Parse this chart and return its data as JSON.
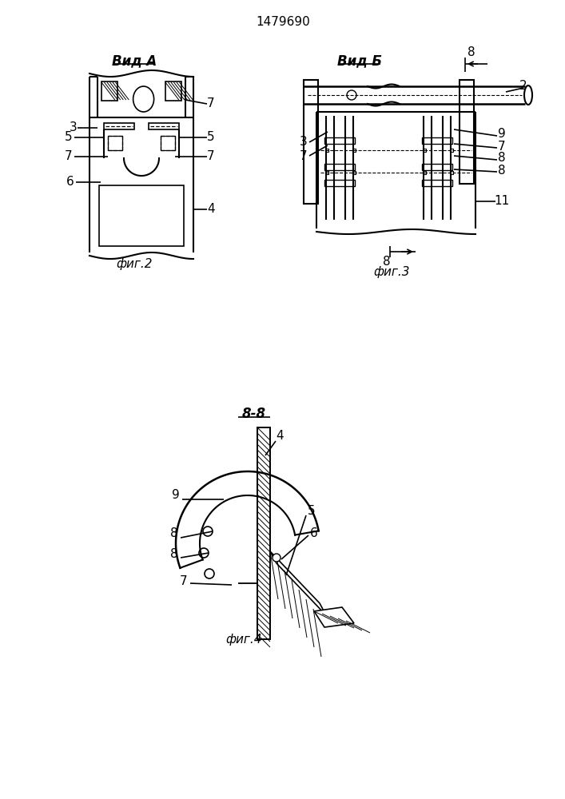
{
  "patent_number": "1479690",
  "bg_color": "#ffffff",
  "line_color": "#000000",
  "fig2_title": "Вид А",
  "fig2_caption": "фиг.2",
  "fig3_title": "Вид Б",
  "fig3_caption": "фиг.3",
  "fig4_title": "8-8",
  "fig4_caption": "фиг.4"
}
